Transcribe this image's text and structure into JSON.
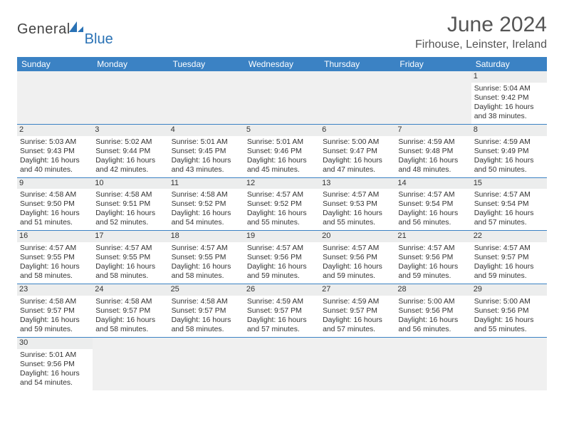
{
  "brand": {
    "text1": "General",
    "text2": "Blue",
    "mark_color": "#2a72b5"
  },
  "title": "June 2024",
  "location": "Firhouse, Leinster, Ireland",
  "colors": {
    "header_bg": "#3b82c4",
    "header_text": "#ffffff",
    "daynum_bg": "#eceded",
    "border": "#3b82c4",
    "empty_bg": "#f0f0f0",
    "text": "#333333"
  },
  "weekdays": [
    "Sunday",
    "Monday",
    "Tuesday",
    "Wednesday",
    "Thursday",
    "Friday",
    "Saturday"
  ],
  "weeks": [
    [
      null,
      null,
      null,
      null,
      null,
      null,
      {
        "n": "1",
        "sr": "5:04 AM",
        "ss": "9:42 PM",
        "d": "16 hours and 38 minutes."
      }
    ],
    [
      {
        "n": "2",
        "sr": "5:03 AM",
        "ss": "9:43 PM",
        "d": "16 hours and 40 minutes."
      },
      {
        "n": "3",
        "sr": "5:02 AM",
        "ss": "9:44 PM",
        "d": "16 hours and 42 minutes."
      },
      {
        "n": "4",
        "sr": "5:01 AM",
        "ss": "9:45 PM",
        "d": "16 hours and 43 minutes."
      },
      {
        "n": "5",
        "sr": "5:01 AM",
        "ss": "9:46 PM",
        "d": "16 hours and 45 minutes."
      },
      {
        "n": "6",
        "sr": "5:00 AM",
        "ss": "9:47 PM",
        "d": "16 hours and 47 minutes."
      },
      {
        "n": "7",
        "sr": "4:59 AM",
        "ss": "9:48 PM",
        "d": "16 hours and 48 minutes."
      },
      {
        "n": "8",
        "sr": "4:59 AM",
        "ss": "9:49 PM",
        "d": "16 hours and 50 minutes."
      }
    ],
    [
      {
        "n": "9",
        "sr": "4:58 AM",
        "ss": "9:50 PM",
        "d": "16 hours and 51 minutes."
      },
      {
        "n": "10",
        "sr": "4:58 AM",
        "ss": "9:51 PM",
        "d": "16 hours and 52 minutes."
      },
      {
        "n": "11",
        "sr": "4:58 AM",
        "ss": "9:52 PM",
        "d": "16 hours and 54 minutes."
      },
      {
        "n": "12",
        "sr": "4:57 AM",
        "ss": "9:52 PM",
        "d": "16 hours and 55 minutes."
      },
      {
        "n": "13",
        "sr": "4:57 AM",
        "ss": "9:53 PM",
        "d": "16 hours and 55 minutes."
      },
      {
        "n": "14",
        "sr": "4:57 AM",
        "ss": "9:54 PM",
        "d": "16 hours and 56 minutes."
      },
      {
        "n": "15",
        "sr": "4:57 AM",
        "ss": "9:54 PM",
        "d": "16 hours and 57 minutes."
      }
    ],
    [
      {
        "n": "16",
        "sr": "4:57 AM",
        "ss": "9:55 PM",
        "d": "16 hours and 58 minutes."
      },
      {
        "n": "17",
        "sr": "4:57 AM",
        "ss": "9:55 PM",
        "d": "16 hours and 58 minutes."
      },
      {
        "n": "18",
        "sr": "4:57 AM",
        "ss": "9:55 PM",
        "d": "16 hours and 58 minutes."
      },
      {
        "n": "19",
        "sr": "4:57 AM",
        "ss": "9:56 PM",
        "d": "16 hours and 59 minutes."
      },
      {
        "n": "20",
        "sr": "4:57 AM",
        "ss": "9:56 PM",
        "d": "16 hours and 59 minutes."
      },
      {
        "n": "21",
        "sr": "4:57 AM",
        "ss": "9:56 PM",
        "d": "16 hours and 59 minutes."
      },
      {
        "n": "22",
        "sr": "4:57 AM",
        "ss": "9:57 PM",
        "d": "16 hours and 59 minutes."
      }
    ],
    [
      {
        "n": "23",
        "sr": "4:58 AM",
        "ss": "9:57 PM",
        "d": "16 hours and 59 minutes."
      },
      {
        "n": "24",
        "sr": "4:58 AM",
        "ss": "9:57 PM",
        "d": "16 hours and 58 minutes."
      },
      {
        "n": "25",
        "sr": "4:58 AM",
        "ss": "9:57 PM",
        "d": "16 hours and 58 minutes."
      },
      {
        "n": "26",
        "sr": "4:59 AM",
        "ss": "9:57 PM",
        "d": "16 hours and 57 minutes."
      },
      {
        "n": "27",
        "sr": "4:59 AM",
        "ss": "9:57 PM",
        "d": "16 hours and 57 minutes."
      },
      {
        "n": "28",
        "sr": "5:00 AM",
        "ss": "9:56 PM",
        "d": "16 hours and 56 minutes."
      },
      {
        "n": "29",
        "sr": "5:00 AM",
        "ss": "9:56 PM",
        "d": "16 hours and 55 minutes."
      }
    ],
    [
      {
        "n": "30",
        "sr": "5:01 AM",
        "ss": "9:56 PM",
        "d": "16 hours and 54 minutes."
      },
      null,
      null,
      null,
      null,
      null,
      null
    ]
  ],
  "labels": {
    "sunrise": "Sunrise:",
    "sunset": "Sunset:",
    "daylight": "Daylight:"
  }
}
